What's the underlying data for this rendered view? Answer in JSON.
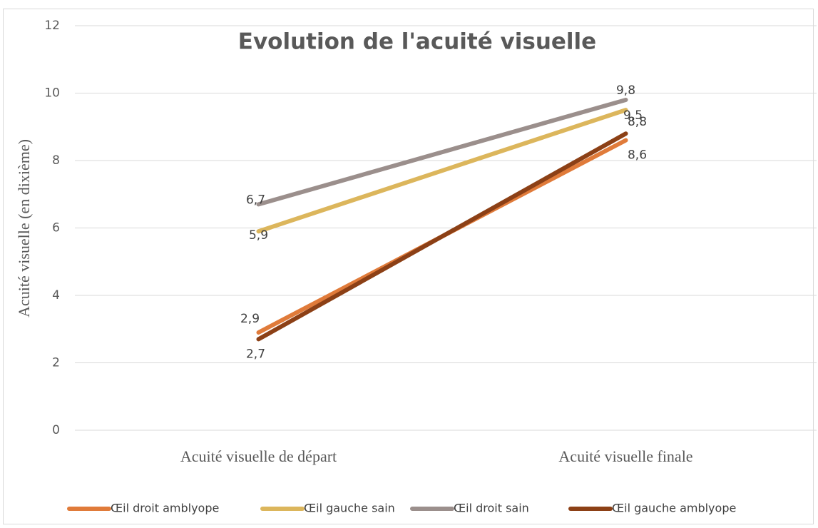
{
  "chart_data": {
    "type": "line",
    "title": "Evolution de l'acuité visuelle",
    "y_label": "Acuité visuelle (en dixième)",
    "categories": [
      "Acuité visuelle de départ",
      "Acuité visuelle finale"
    ],
    "series": [
      {
        "name": "Œil droit amblyope",
        "color": "#e07b3a",
        "values": [
          2.9,
          8.6
        ],
        "value_labels": [
          "2,9",
          "8,6"
        ]
      },
      {
        "name": "Œil gauche sain",
        "color": "#dcb65c",
        "values": [
          5.9,
          9.5
        ],
        "value_labels": [
          "5,9",
          "9,5"
        ]
      },
      {
        "name": "Œil droit sain",
        "color": "#9b8f8c",
        "values": [
          6.7,
          9.8
        ],
        "value_labels": [
          "6,7",
          "9,8"
        ]
      },
      {
        "name": "Œil gauche amblyope",
        "color": "#8c4016",
        "values": [
          2.7,
          8.8
        ],
        "value_labels": [
          "2,7",
          "8,8"
        ]
      }
    ],
    "ylim": [
      0,
      12
    ],
    "yticks": [
      0,
      2,
      4,
      6,
      8,
      10,
      12
    ],
    "grid": true,
    "legend": "bottom"
  }
}
